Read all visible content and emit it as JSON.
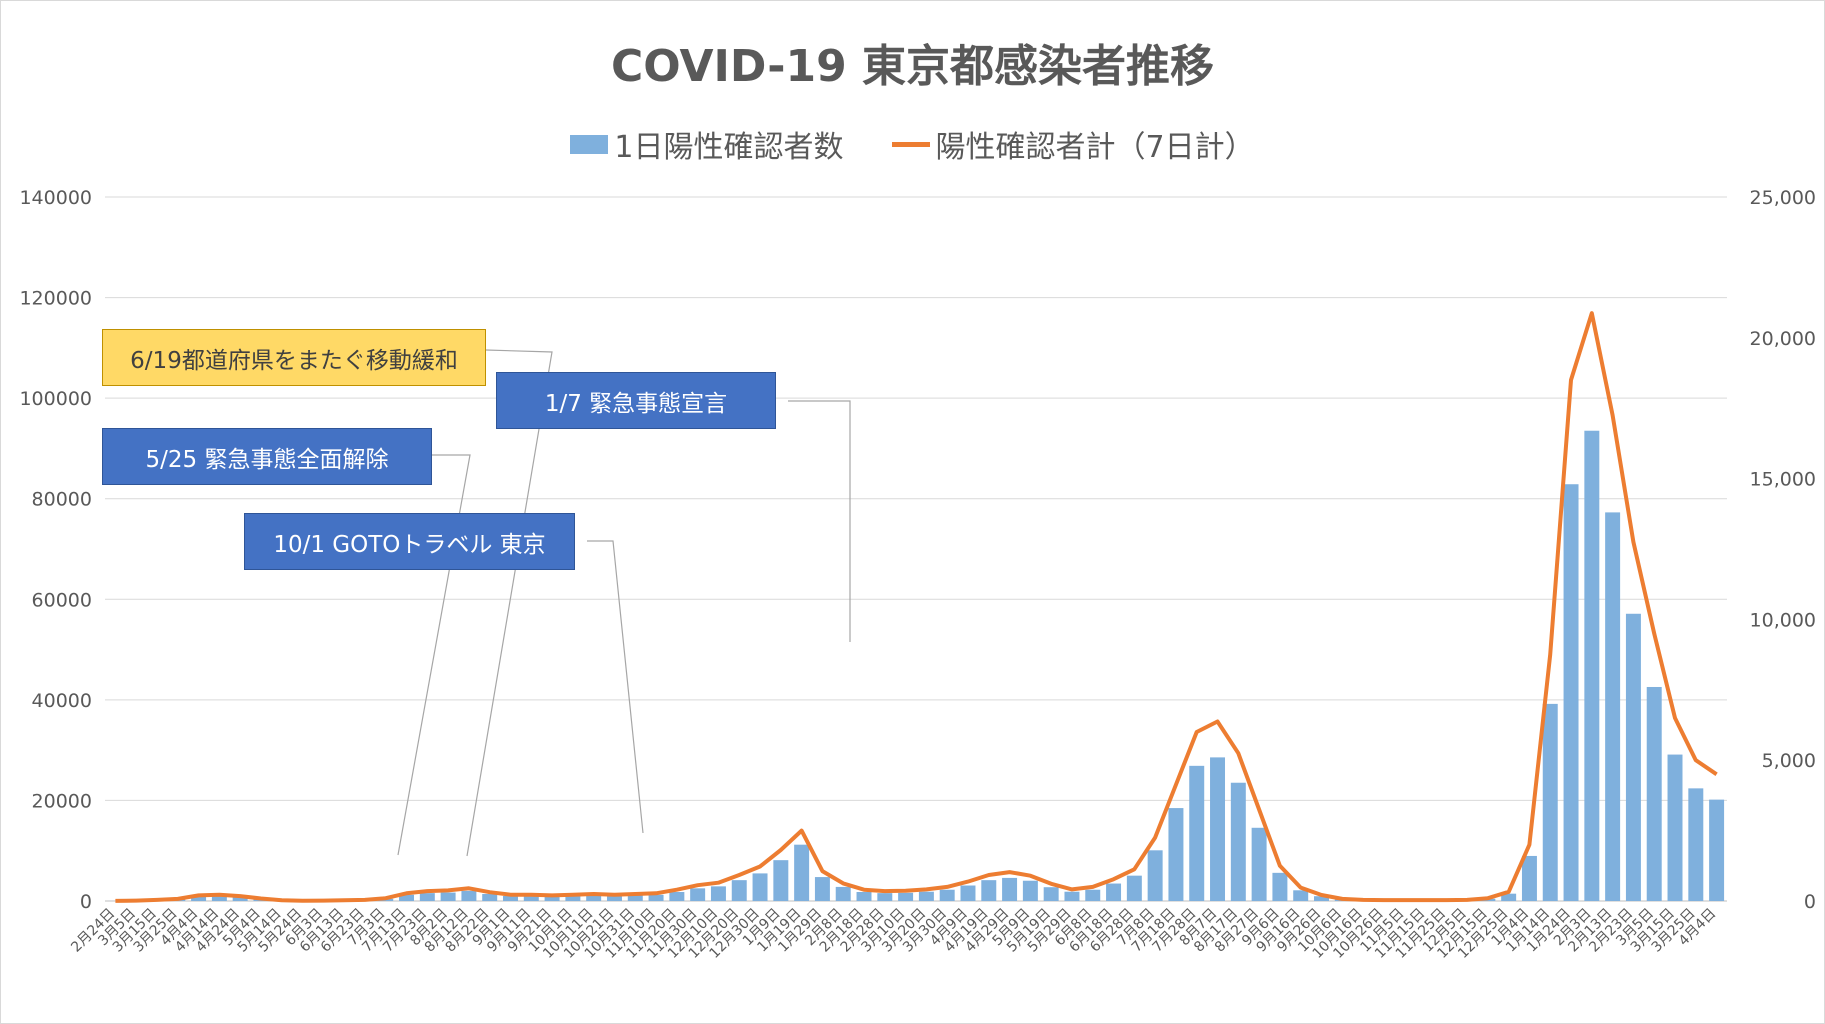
{
  "chart_data": {
    "type": "bar",
    "title": "COVID-19 東京都感染者推移",
    "legend": {
      "position": "top",
      "bar_series": "1日陽性確認者数",
      "line_series": "陽性確認者計（7日計）"
    },
    "y_left": {
      "ticks": [
        "140000",
        "120000",
        "100000",
        "80000",
        "60000",
        "40000",
        "20000",
        "0"
      ],
      "ylim": [
        0,
        140000
      ]
    },
    "y_right": {
      "ticks": [
        "25,000",
        "20,000",
        "15,000",
        "10,000",
        "5,000",
        "0"
      ],
      "ylim": [
        0,
        25000
      ]
    },
    "grid": true,
    "x_labels": [
      "2月24日",
      "3月5日",
      "3月15日",
      "3月25日",
      "4月4日",
      "4月14日",
      "4月24日",
      "5月4日",
      "5月14日",
      "5月24日",
      "6月3日",
      "6月13日",
      "6月23日",
      "7月3日",
      "7月13日",
      "7月23日",
      "8月2日",
      "8月12日",
      "8月22日",
      "9月1日",
      "9月11日",
      "9月21日",
      "10月1日",
      "10月11日",
      "10月21日",
      "10月31日",
      "11月10日",
      "11月20日",
      "11月30日",
      "12月10日",
      "12月20日",
      "12月30日",
      "1月9日",
      "1月19日",
      "1月29日",
      "2月8日",
      "2月18日",
      "2月28日",
      "3月10日",
      "3月20日",
      "3月30日",
      "4月9日",
      "4月19日",
      "4月29日",
      "5月9日",
      "5月19日",
      "5月29日",
      "6月8日",
      "6月18日",
      "6月28日",
      "7月8日",
      "7月18日",
      "7月28日",
      "8月7日",
      "8月17日",
      "8月27日",
      "9月6日",
      "9月16日",
      "9月26日",
      "10月6日",
      "10月16日",
      "10月26日",
      "11月5日",
      "11月15日",
      "11月25日",
      "12月5日",
      "12月15日",
      "12月25日",
      "1月4日",
      "1月14日",
      "1月24日",
      "2月3日",
      "2月13日",
      "2月23日",
      "3月5日",
      "3月15日",
      "3月25日",
      "4月4日"
    ],
    "bar_series": {
      "name": "1日陽性確認者数",
      "color": "#7fb0dd",
      "values": [
        2,
        10,
        30,
        60,
        160,
        180,
        140,
        70,
        20,
        5,
        10,
        20,
        30,
        80,
        220,
        280,
        300,
        360,
        250,
        180,
        180,
        160,
        180,
        200,
        180,
        200,
        220,
        320,
        450,
        520,
        740,
        980,
        1450,
        2000,
        850,
        500,
        320,
        280,
        290,
        330,
        400,
        550,
        740,
        820,
        720,
        490,
        330,
        400,
        620,
        900,
        1800,
        3300,
        4800,
        5100,
        4200,
        2600,
        1000,
        380,
        170,
        60,
        30,
        25,
        25,
        25,
        25,
        30,
        80,
        260,
        1600,
        7000,
        14800,
        16700,
        13800,
        10200,
        7600,
        5200,
        4000,
        3600
      ]
    },
    "line_series": {
      "name": "陽性確認者計（7日計）",
      "color": "#ed7d31",
      "values": [
        14,
        70,
        210,
        420,
        1120,
        1260,
        980,
        490,
        140,
        35,
        70,
        140,
        210,
        560,
        1540,
        1960,
        2100,
        2520,
        1750,
        1260,
        1260,
        1120,
        1260,
        1400,
        1260,
        1400,
        1540,
        2240,
        3150,
        3640,
        5180,
        6860,
        10150,
        14000,
        5950,
        3500,
        2240,
        1960,
        2030,
        2310,
        2800,
        3850,
        5180,
        5740,
        5040,
        3430,
        2310,
        2800,
        4340,
        6300,
        12600,
        23100,
        33600,
        35700,
        29400,
        18200,
        7000,
        2660,
        1190,
        420,
        210,
        175,
        175,
        175,
        175,
        210,
        560,
        1820,
        11200,
        49000,
        103600,
        116900,
        96600,
        71400,
        53200,
        36400,
        28000,
        25200
      ]
    },
    "annotations": [
      "6/19都道府県をまたぐ移動緩和",
      "1/7 緊急事態宣言",
      "5/25 緊急事態全面解除",
      "10/1 GOTOトラベル 東京"
    ]
  }
}
